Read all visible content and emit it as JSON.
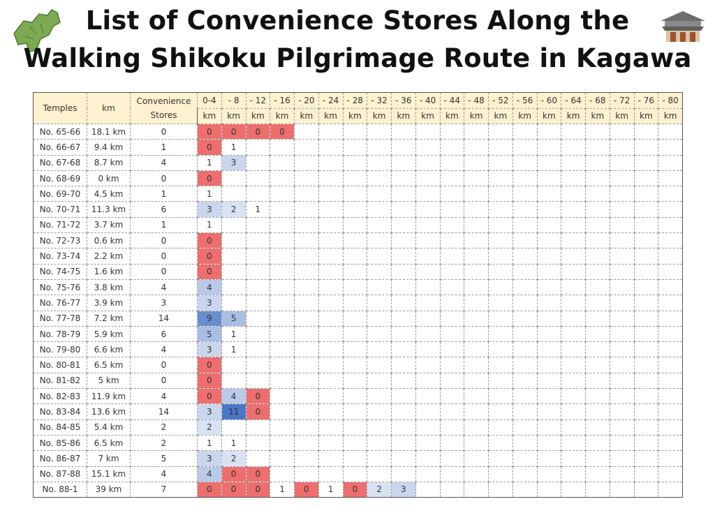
{
  "header": {
    "title_line1": "List of Convenience Stores Along the",
    "title_line2": "Walking Shikoku Pilgrimage Route  in Kagawa"
  },
  "table": {
    "headers": [
      "Temples",
      "km",
      "Convenience Stores"
    ],
    "bins": [
      [
        "0-4",
        "km"
      ],
      [
        "- 8",
        "km"
      ],
      [
        "- 12",
        "km"
      ],
      [
        "- 16",
        "km"
      ],
      [
        "- 20",
        "km"
      ],
      [
        "- 24",
        "km"
      ],
      [
        "- 28",
        "km"
      ],
      [
        "- 32",
        "km"
      ],
      [
        "- 36",
        "km"
      ],
      [
        "- 40",
        "km"
      ],
      [
        "- 44",
        "km"
      ],
      [
        "- 48",
        "km"
      ],
      [
        "- 52",
        "km"
      ],
      [
        "- 56",
        "km"
      ],
      [
        "- 60",
        "km"
      ],
      [
        "- 64",
        "km"
      ],
      [
        "- 68",
        "km"
      ],
      [
        "- 72",
        "km"
      ],
      [
        "- 76",
        "km"
      ],
      [
        "- 80",
        "km"
      ]
    ],
    "rows": [
      {
        "temples": "No. 65-66",
        "km": "18.1 km",
        "stores": 0,
        "counts": [
          0,
          0,
          0,
          0
        ]
      },
      {
        "temples": "No. 66-67",
        "km": "9.4 km",
        "stores": 1,
        "counts": [
          0,
          1
        ]
      },
      {
        "temples": "No. 67-68",
        "km": "8.7 km",
        "stores": 4,
        "counts": [
          1,
          3
        ]
      },
      {
        "temples": "No. 68-69",
        "km": "0 km",
        "stores": 0,
        "counts": [
          0
        ]
      },
      {
        "temples": "No. 69-70",
        "km": "4.5 km",
        "stores": 1,
        "counts": [
          1
        ]
      },
      {
        "temples": "No. 70-71",
        "km": "11.3 km",
        "stores": 6,
        "counts": [
          3,
          2,
          1
        ]
      },
      {
        "temples": "No. 71-72",
        "km": "3.7 km",
        "stores": 1,
        "counts": [
          1
        ]
      },
      {
        "temples": "No. 72-73",
        "km": "0.6 km",
        "stores": 0,
        "counts": [
          0
        ]
      },
      {
        "temples": "No. 73-74",
        "km": "2.2 km",
        "stores": 0,
        "counts": [
          0
        ]
      },
      {
        "temples": "No. 74-75",
        "km": "1.6 km",
        "stores": 0,
        "counts": [
          0
        ]
      },
      {
        "temples": "No. 75-76",
        "km": "3.8 km",
        "stores": 4,
        "counts": [
          4
        ]
      },
      {
        "temples": "No. 76-77",
        "km": "3.9 km",
        "stores": 3,
        "counts": [
          3
        ]
      },
      {
        "temples": "No. 77-78",
        "km": "7.2 km",
        "stores": 14,
        "counts": [
          9,
          5
        ]
      },
      {
        "temples": "No. 78-79",
        "km": "5.9 km",
        "stores": 6,
        "counts": [
          5,
          1
        ]
      },
      {
        "temples": "No. 79-80",
        "km": "6.6 km",
        "stores": 4,
        "counts": [
          3,
          1
        ]
      },
      {
        "temples": "No. 80-81",
        "km": "6.5 km",
        "stores": 0,
        "counts": [
          0
        ]
      },
      {
        "temples": "No. 81-82",
        "km": "5 km",
        "stores": 0,
        "counts": [
          0
        ]
      },
      {
        "temples": "No. 82-83",
        "km": "11.9 km",
        "stores": 4,
        "counts": [
          0,
          4,
          0
        ]
      },
      {
        "temples": "No. 83-84",
        "km": "13.6 km",
        "stores": 14,
        "counts": [
          3,
          11,
          0
        ]
      },
      {
        "temples": "No. 84-85",
        "km": "5.4 km",
        "stores": 2,
        "counts": [
          2
        ]
      },
      {
        "temples": "No. 85-86",
        "km": "6.5 km",
        "stores": 2,
        "counts": [
          1,
          1
        ]
      },
      {
        "temples": "No. 86-87",
        "km": "7 km",
        "stores": 5,
        "counts": [
          3,
          2
        ]
      },
      {
        "temples": "No. 87-88",
        "km": "15.1 km",
        "stores": 4,
        "counts": [
          4,
          0,
          0
        ]
      },
      {
        "temples": "No. 88-1",
        "km": "39 km",
        "stores": 7,
        "counts": [
          0,
          0,
          0,
          1,
          0,
          1,
          0,
          2,
          3
        ]
      }
    ]
  }
}
